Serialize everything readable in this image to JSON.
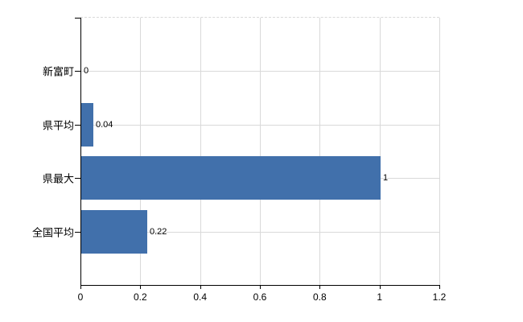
{
  "chart_data": {
    "type": "bar",
    "orientation": "horizontal",
    "title": "",
    "xlabel": "",
    "ylabel": "",
    "categories": [
      "新富町",
      "県平均",
      "県最大",
      "全国平均"
    ],
    "values": [
      0,
      0.04,
      1,
      0.22
    ],
    "value_labels": [
      "0",
      "0.04",
      "1",
      "0.22"
    ],
    "xlim": [
      0,
      1.2
    ],
    "x_ticks": [
      0,
      0.2,
      0.4,
      0.6,
      0.8,
      1,
      1.2
    ],
    "x_tick_labels": [
      "0",
      "0.2",
      "0.4",
      "0.6",
      "0.8",
      "1",
      "1.2"
    ],
    "grid": true,
    "legend": false,
    "colors": {
      "bar": "#4170ab",
      "grid": "#d9d9d9",
      "axis": "#000000",
      "text": "#000000",
      "background": "#ffffff"
    }
  }
}
